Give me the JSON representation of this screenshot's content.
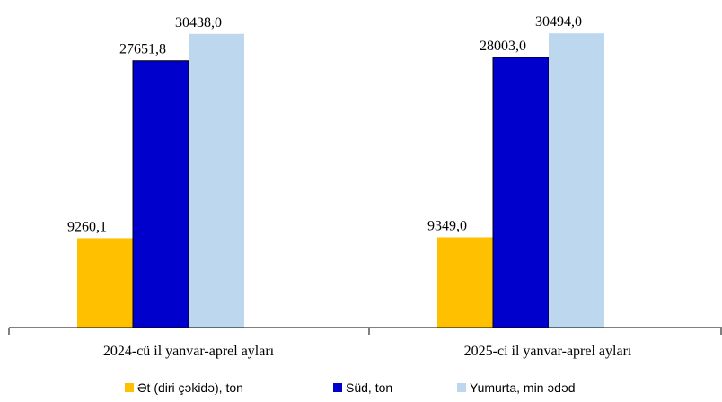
{
  "chart_data": {
    "type": "bar",
    "title": "",
    "xlabel": "",
    "ylabel": "",
    "ylim": [
      0,
      32000
    ],
    "grid": false,
    "legend_position": "bottom",
    "categories": [
      "2024-cü il yanvar-aprel ayları",
      "2025-ci il yanvar-aprel ayları"
    ],
    "series": [
      {
        "name": "Ət (diri çəkidə), ton",
        "color": "#FFC000",
        "values": [
          9260.1,
          9349.0
        ],
        "labels": [
          "9260,1",
          "9349,0"
        ]
      },
      {
        "name": "Süd, ton",
        "color": "#0000CC",
        "values": [
          27651.8,
          28003.0
        ],
        "labels": [
          "27651,8",
          "28003,0"
        ]
      },
      {
        "name": "Yumurta, min ədəd",
        "color": "#BDD7EE",
        "values": [
          30438.0,
          30494.0
        ],
        "labels": [
          "30438,0",
          "30494,0"
        ]
      }
    ]
  }
}
